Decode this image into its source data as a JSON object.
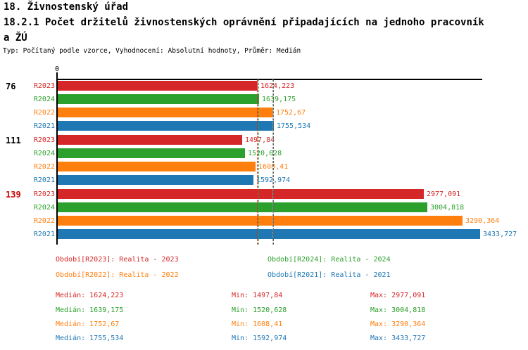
{
  "header": {
    "line1": "18. Živnostenský úřad",
    "line2": "18.2.1 Počet držitelů živnostenských oprávnění připadajících na jednoho pracovník",
    "line3": "a ŽÚ",
    "meta": "Typ: Počítaný podle vzorce, Vyhodnocení: Absolutní hodnoty, Průměr: Medián"
  },
  "axis": {
    "zero_label": "0",
    "color": "#000000"
  },
  "chart_data": {
    "type": "bar",
    "orientation": "horizontal",
    "title": "18.2.1 Počet držitelů živnostenských oprávnění připadajících na jednoho pracovníka ŽÚ",
    "xlim": [
      0,
      3450
    ],
    "grid": false,
    "legend_position": "bottom",
    "groups": [
      "76",
      "111",
      "139"
    ],
    "group_label_colors": [
      "#000000",
      "#000000",
      "#cc0000"
    ],
    "series": [
      {
        "name": "R2023",
        "color": "#d62728",
        "values": [
          1624.223,
          1497.84,
          2977.091
        ],
        "labels": [
          "1624,223",
          "1497,84",
          "2977,091"
        ],
        "median": 1624.223,
        "legend": "Období[R2023]: Realita - 2023",
        "stats": {
          "median": "Medián: 1624,223",
          "min": "Min: 1497,84",
          "max": "Max: 2977,091"
        }
      },
      {
        "name": "R2024",
        "color": "#2ca02c",
        "values": [
          1639.175,
          1520.628,
          3004.818
        ],
        "labels": [
          "1639,175",
          "1520,628",
          "3004,818"
        ],
        "median": 1639.175,
        "legend": "Období[R2024]: Realita - 2024",
        "stats": {
          "median": "Medián: 1639,175",
          "min": "Min: 1520,628",
          "max": "Max: 3004,818"
        }
      },
      {
        "name": "R2022",
        "color": "#ff7f0e",
        "values": [
          1752.67,
          1608.41,
          3290.364
        ],
        "labels": [
          "1752,67",
          "1608,41",
          "3290,364"
        ],
        "median": 1752.67,
        "legend": "Období[R2022]: Realita - 2022",
        "stats": {
          "median": "Medián: 1752,67",
          "min": "Min: 1608,41",
          "max": "Max: 3290,364"
        }
      },
      {
        "name": "R2021",
        "color": "#1f77b4",
        "values": [
          1755.534,
          1592.974,
          3433.727
        ],
        "labels": [
          "1755,534",
          "1592,974",
          "3433,727"
        ],
        "median": 1755.534,
        "legend": "Období[R2021]: Realita - 2021",
        "stats": {
          "median": "Medián: 1755,534",
          "min": "Min: 1592,974",
          "max": "Max: 3433,727"
        }
      }
    ]
  }
}
